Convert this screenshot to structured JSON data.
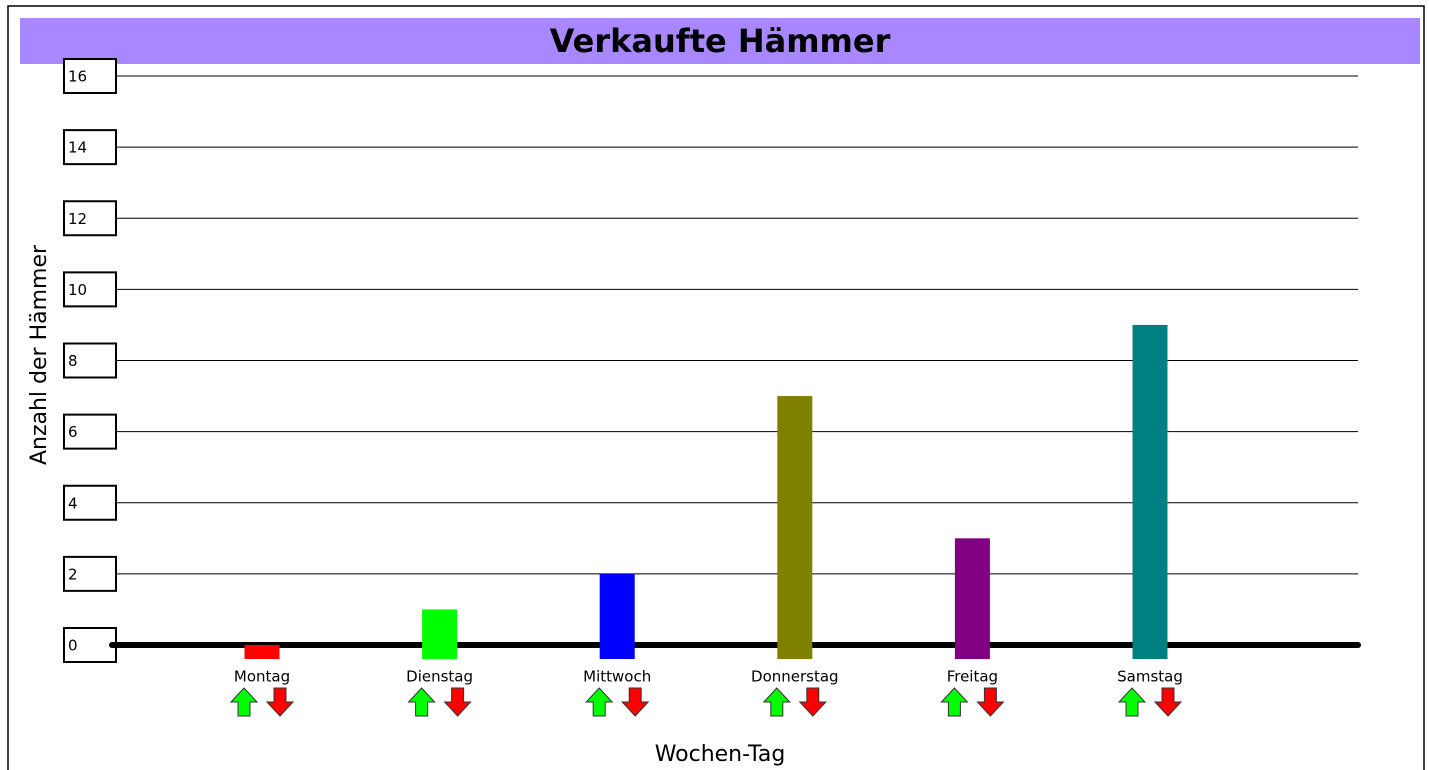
{
  "chart_data": {
    "type": "bar",
    "title": "Verkaufte Hämmer",
    "x_label": "Wochen-Tag",
    "y_label": "Anzahl der Hämmer",
    "categories": [
      "Montag",
      "Dienstag",
      "Mittwoch",
      "Donnerstag",
      "Freitag",
      "Samstag"
    ],
    "values": [
      0,
      1,
      2,
      7,
      3,
      9
    ],
    "colors": [
      "#ff0000",
      "#00ff00",
      "#0000ff",
      "#808000",
      "#800080",
      "#008080"
    ],
    "ylim": [
      0,
      16
    ],
    "yticks": [
      0,
      2,
      4,
      6,
      8,
      10,
      12,
      14,
      16
    ],
    "grid": true
  }
}
